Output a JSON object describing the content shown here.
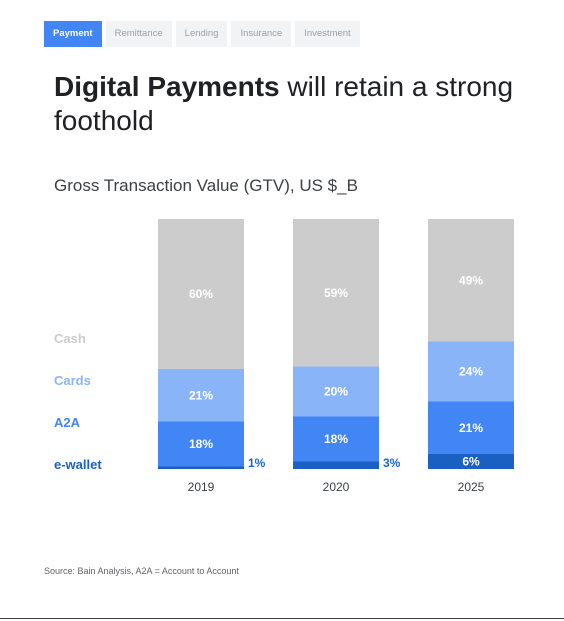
{
  "tabs": [
    {
      "label": "Payment",
      "active": true
    },
    {
      "label": "Remittance",
      "active": false
    },
    {
      "label": "Lending",
      "active": false
    },
    {
      "label": "Insurance",
      "active": false
    },
    {
      "label": "Investment",
      "active": false
    }
  ],
  "headline": {
    "bold": "Digital Payments",
    "rest": " will retain a strong foothold"
  },
  "source": "Source: Bain Analysis, A2A = Account to Account",
  "colors": {
    "cash": "#cccccc",
    "cards": "#8ab4f8",
    "a2a": "#4285f4",
    "ewallet": "#1a5fc2",
    "label_text": "#1967d2"
  },
  "chart_data": {
    "type": "bar",
    "stacked": true,
    "percent": true,
    "title": "Gross Transaction Value (GTV), US $_B",
    "categories": [
      "2019",
      "2020",
      "2025"
    ],
    "series": [
      {
        "name": "e-wallet",
        "values": [
          1,
          3,
          6
        ],
        "labels": [
          "1%",
          "3%",
          "6%"
        ]
      },
      {
        "name": "A2A",
        "values": [
          18,
          18,
          21
        ],
        "labels": [
          "18%",
          "18%",
          "21%"
        ]
      },
      {
        "name": "Cards",
        "values": [
          21,
          20,
          24
        ],
        "labels": [
          "21%",
          "20%",
          "24%"
        ]
      },
      {
        "name": "Cash",
        "values": [
          60,
          59,
          49
        ],
        "labels": [
          "60%",
          "59%",
          "49%"
        ]
      }
    ],
    "legend_position": "left"
  }
}
